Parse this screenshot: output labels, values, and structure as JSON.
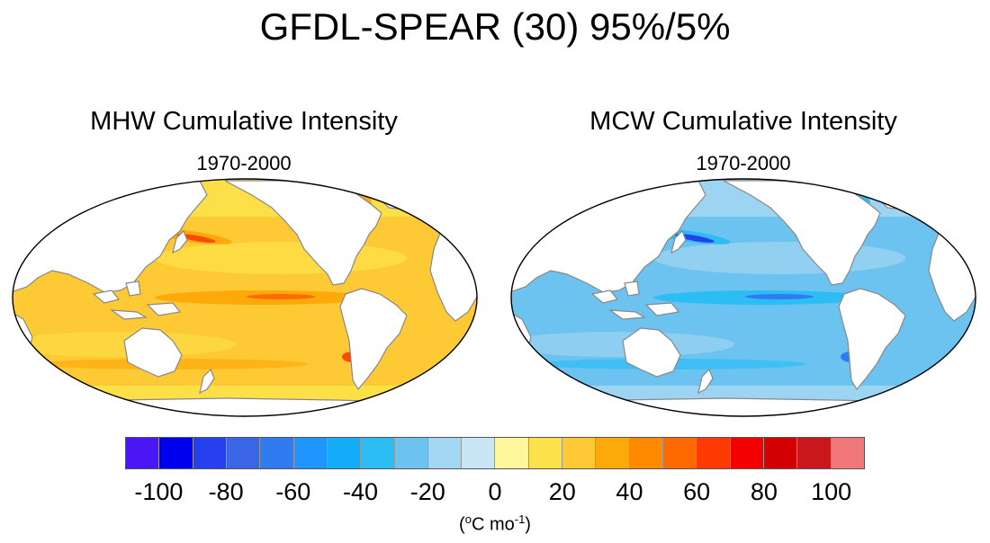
{
  "figure": {
    "title": "GFDL-SPEAR (30) 95%/5%",
    "left_panel": {
      "title": "MHW Cumulative Intensity",
      "period": "1970-2000"
    },
    "right_panel": {
      "title": "MCW Cumulative Intensity",
      "period": "1970-2000"
    },
    "colorbar": {
      "ticks": [
        "-100",
        "-80",
        "-60",
        "-40",
        "-20",
        "0",
        "20",
        "40",
        "60",
        "80",
        "100"
      ],
      "units_prefix": "(",
      "units_o": "o",
      "units_main": "C mo",
      "units_exp": "-1",
      "units_suffix": ")",
      "colors": [
        "#4b16f5",
        "#0000ee",
        "#2640ef",
        "#3a66e6",
        "#2e7bf2",
        "#1f96ff",
        "#12acf8",
        "#2cbdf5",
        "#6cc3ef",
        "#a3d6f2",
        "#c9e6f6",
        "#fff59a",
        "#fde14a",
        "#fdc934",
        "#fda90a",
        "#ff8a00",
        "#ff6a00",
        "#ff3a00",
        "#f50000",
        "#d20000",
        "#c8181c",
        "#f07878"
      ]
    }
  }
}
